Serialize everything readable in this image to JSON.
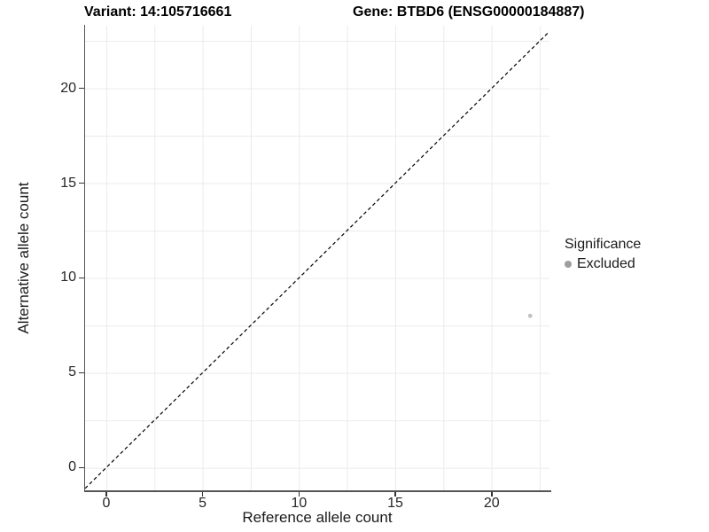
{
  "chart_data": {
    "type": "scatter",
    "title_left": "Variant: 14:105716661",
    "title_right": "Gene: BTBD6 (ENSG00000184887)",
    "xlabel": "Reference allele count",
    "ylabel": "Alternative allele count",
    "x_ticks": [
      "0",
      "5",
      "10",
      "15",
      "20"
    ],
    "y_ticks": [
      "0",
      "5",
      "10",
      "15",
      "20"
    ],
    "x_tick_values": [
      0,
      5,
      10,
      15,
      20
    ],
    "y_tick_values": [
      0,
      5,
      10,
      15,
      20
    ],
    "xlim": [
      -1.1,
      23.0
    ],
    "ylim": [
      -1.2,
      23.3
    ],
    "grid": "major and minor gridlines, step 2.5, light gray, white background",
    "points": [
      {
        "x": 22,
        "y": 8,
        "series": "Excluded"
      }
    ],
    "identity_line": {
      "equation": "y = x",
      "style": "dashed",
      "color": "#000000"
    },
    "legend": {
      "title": "Significance",
      "position": "right",
      "entries": [
        {
          "label": "Excluded",
          "color": "#9e9e9e"
        }
      ]
    }
  },
  "colors": {
    "background": "#ffffff",
    "grid": "#ebebeb",
    "axis_line": "#555555",
    "tick_mark": "#333333",
    "tick_text": "#262626",
    "title_text": "#000000",
    "point": "#c0c0c0",
    "legend_key": "#9e9e9e"
  }
}
